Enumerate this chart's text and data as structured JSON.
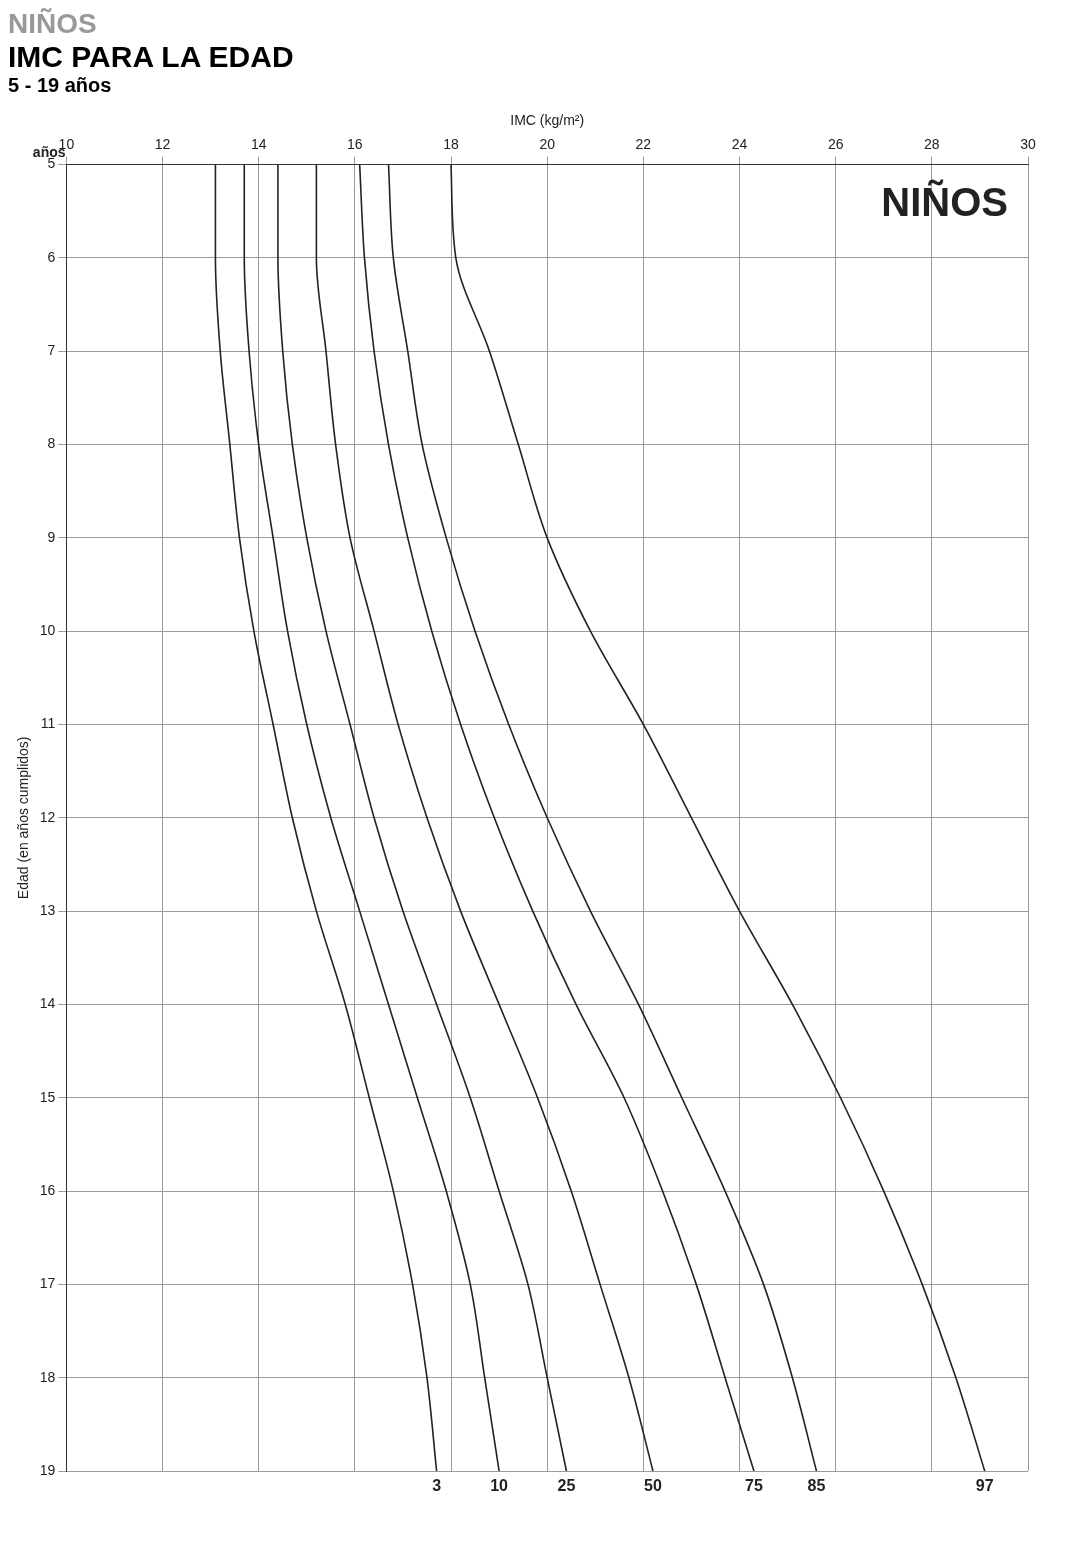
{
  "chart_data": {
    "type": "line",
    "title": "IMC PARA LA EDAD",
    "subtitle": "5 - 19 años",
    "xlabel": "IMC (kg/m²)",
    "ylabel": "Edad (en años cumplidos)",
    "annotations": [
      "NIÑOS",
      "NIÑOS",
      "años"
    ],
    "orientation": "horizontal",
    "x": [
      5,
      6,
      7,
      8,
      9,
      10,
      11,
      12,
      13,
      14,
      15,
      16,
      17,
      18,
      19
    ],
    "series": [
      {
        "name": "3",
        "color": "#222222",
        "values": [
          13.1,
          13.1,
          13.2,
          13.4,
          13.6,
          13.9,
          14.3,
          14.7,
          15.2,
          15.8,
          16.3,
          16.8,
          17.2,
          17.5,
          17.7
        ]
      },
      {
        "name": "10",
        "color": "#222222",
        "values": [
          13.7,
          13.7,
          13.8,
          14.0,
          14.3,
          14.6,
          15.0,
          15.5,
          16.1,
          16.7,
          17.3,
          17.9,
          18.4,
          18.7,
          19.0
        ]
      },
      {
        "name": "25",
        "color": "#222222",
        "values": [
          14.4,
          14.4,
          14.5,
          14.7,
          15.0,
          15.4,
          15.9,
          16.4,
          17.0,
          17.7,
          18.4,
          19.0,
          19.6,
          20.0,
          20.4
        ]
      },
      {
        "name": "50",
        "color": "#222222",
        "values": [
          15.2,
          15.2,
          15.4,
          15.6,
          15.9,
          16.4,
          16.9,
          17.5,
          18.2,
          19.0,
          19.8,
          20.5,
          21.1,
          21.7,
          22.2
        ]
      },
      {
        "name": "75",
        "color": "#222222",
        "values": [
          16.1,
          16.2,
          16.4,
          16.7,
          17.1,
          17.6,
          18.2,
          18.9,
          19.7,
          20.6,
          21.6,
          22.4,
          23.1,
          23.7,
          24.3
        ]
      },
      {
        "name": "85",
        "color": "#222222",
        "values": [
          16.7,
          16.8,
          17.1,
          17.4,
          17.9,
          18.5,
          19.2,
          20.0,
          20.9,
          21.9,
          22.8,
          23.7,
          24.5,
          25.1,
          25.6
        ]
      },
      {
        "name": "97",
        "color": "#222222",
        "values": [
          18.0,
          18.1,
          18.8,
          19.4,
          20.0,
          20.9,
          22.0,
          23.0,
          24.0,
          25.1,
          26.1,
          27.0,
          27.8,
          28.5,
          29.1
        ]
      }
    ],
    "xlim": [
      10,
      30
    ],
    "xticks": [
      10,
      12,
      14,
      16,
      18,
      20,
      22,
      24,
      26,
      28,
      30
    ],
    "ylim": [
      19,
      5
    ],
    "yticks": [
      5,
      6,
      7,
      8,
      9,
      10,
      11,
      12,
      13,
      14,
      15,
      16,
      17,
      18,
      19
    ],
    "grid": true,
    "legend": false,
    "marker": "none",
    "line_style": "solid"
  }
}
